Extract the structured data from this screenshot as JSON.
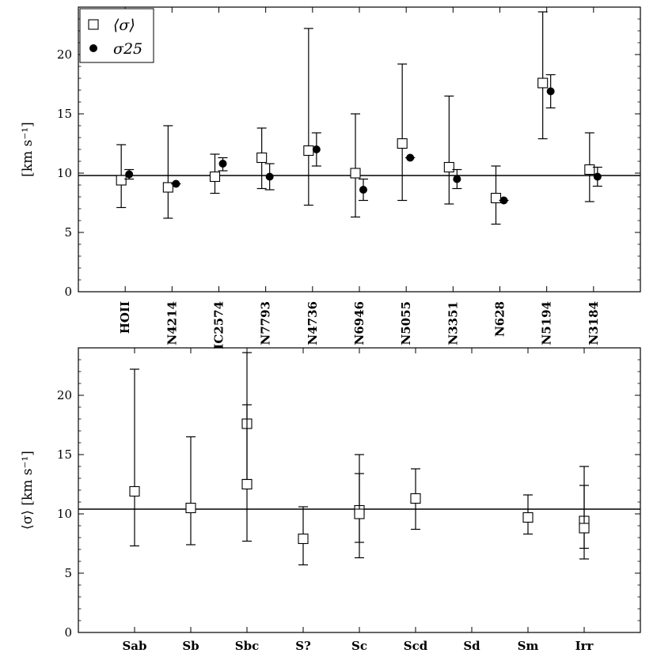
{
  "chart_data": [
    {
      "type": "scatter",
      "ylabel": "[km s⁻¹]",
      "ylim": [
        0,
        24
      ],
      "yticks": [
        0,
        5,
        10,
        15,
        20
      ],
      "categories": [
        "HOII",
        "N4214",
        "IC2574",
        "N7793",
        "N4736",
        "N6946",
        "N5055",
        "N3351",
        "N628",
        "N5194",
        "N3184"
      ],
      "reference_line": 9.8,
      "legend_position": "top-left",
      "series": [
        {
          "name": "⟨σ⟩",
          "marker": "open-square",
          "values": [
            9.4,
            8.8,
            9.7,
            11.3,
            11.9,
            10.0,
            12.5,
            10.5,
            7.9,
            17.6,
            10.3
          ],
          "err_low": [
            7.1,
            6.2,
            8.3,
            8.7,
            7.3,
            6.3,
            7.7,
            7.4,
            5.7,
            12.9,
            7.6
          ],
          "err_high": [
            12.4,
            14.0,
            11.6,
            13.8,
            22.2,
            15.0,
            19.2,
            16.5,
            10.6,
            23.6,
            13.4
          ]
        },
        {
          "name": "σ25",
          "marker": "filled-circle",
          "values": [
            9.9,
            9.1,
            10.8,
            9.7,
            12.0,
            8.6,
            11.3,
            9.5,
            7.7,
            16.9,
            9.7
          ],
          "err_low": [
            9.5,
            9.1,
            10.2,
            8.6,
            10.6,
            7.7,
            11.3,
            8.7,
            7.7,
            15.5,
            8.9
          ],
          "err_high": [
            10.3,
            9.1,
            11.3,
            10.8,
            13.4,
            9.5,
            11.3,
            10.3,
            7.7,
            18.3,
            10.5
          ]
        }
      ]
    },
    {
      "type": "scatter",
      "ylabel": "⟨σ⟩ [km s⁻¹]",
      "ylim": [
        0,
        24
      ],
      "yticks": [
        0,
        5,
        10,
        15,
        20
      ],
      "categories": [
        "Sab",
        "Sb",
        "Sbc",
        "S?",
        "Sc",
        "Scd",
        "Sd",
        "Sm",
        "Irr"
      ],
      "reference_line": 10.4,
      "series": [
        {
          "marker": "open-square",
          "points": [
            {
              "category": "Sab",
              "value": 11.9,
              "err_low": 7.3,
              "err_high": 22.2
            },
            {
              "category": "Sb",
              "value": 10.5,
              "err_low": 7.4,
              "err_high": 16.5
            },
            {
              "category": "Sbc",
              "value": 17.6,
              "err_low": 12.9,
              "err_high": 23.6
            },
            {
              "category": "Sbc",
              "value": 12.5,
              "err_low": 7.7,
              "err_high": 19.2
            },
            {
              "category": "S?",
              "value": 7.9,
              "err_low": 5.7,
              "err_high": 10.6
            },
            {
              "category": "Sc",
              "value": 10.3,
              "err_low": 7.6,
              "err_high": 13.4
            },
            {
              "category": "Sc",
              "value": 10.0,
              "err_low": 6.3,
              "err_high": 15.0
            },
            {
              "category": "Scd",
              "value": 11.3,
              "err_low": 8.7,
              "err_high": 13.8
            },
            {
              "category": "Sm",
              "value": 9.7,
              "err_low": 8.3,
              "err_high": 11.6
            },
            {
              "category": "Irr",
              "value": 9.4,
              "err_low": 7.1,
              "err_high": 12.4
            },
            {
              "category": "Irr",
              "value": 8.8,
              "err_low": 6.2,
              "err_high": 14.0
            }
          ]
        }
      ]
    }
  ]
}
